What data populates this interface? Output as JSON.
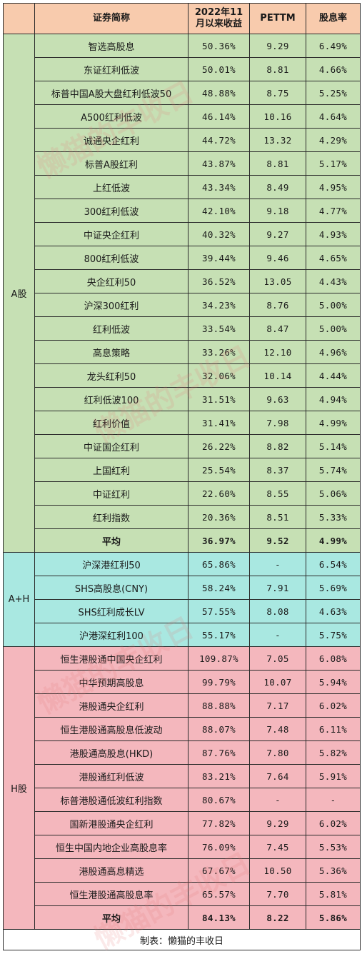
{
  "header": {
    "col_name": "证券简称",
    "col_return": "2022年11月以来收益",
    "col_pe": "PETTM",
    "col_yield": "股息率"
  },
  "groups": {
    "a_share": {
      "label": "A股",
      "rows": [
        {
          "name": "智选高股息",
          "ret": "50.36%",
          "pe": "9.29",
          "yield": "6.49%"
        },
        {
          "name": "东证红利低波",
          "ret": "50.01%",
          "pe": "8.81",
          "yield": "4.66%"
        },
        {
          "name": "标普中国A股大盘红利低波50",
          "ret": "48.88%",
          "pe": "8.75",
          "yield": "5.25%"
        },
        {
          "name": "A500红利低波",
          "ret": "46.14%",
          "pe": "10.16",
          "yield": "4.64%"
        },
        {
          "name": "诚通央企红利",
          "ret": "44.72%",
          "pe": "13.32",
          "yield": "4.29%"
        },
        {
          "name": "标普A股红利",
          "ret": "43.87%",
          "pe": "8.81",
          "yield": "5.17%"
        },
        {
          "name": "上红低波",
          "ret": "43.34%",
          "pe": "8.49",
          "yield": "4.95%"
        },
        {
          "name": "300红利低波",
          "ret": "42.10%",
          "pe": "9.18",
          "yield": "4.77%"
        },
        {
          "name": "中证央企红利",
          "ret": "40.32%",
          "pe": "9.27",
          "yield": "4.93%"
        },
        {
          "name": "800红利低波",
          "ret": "39.44%",
          "pe": "9.46",
          "yield": "4.65%"
        },
        {
          "name": "央企红利50",
          "ret": "36.52%",
          "pe": "13.05",
          "yield": "4.43%"
        },
        {
          "name": "沪深300红利",
          "ret": "34.23%",
          "pe": "8.76",
          "yield": "5.00%"
        },
        {
          "name": "红利低波",
          "ret": "33.54%",
          "pe": "8.47",
          "yield": "5.00%"
        },
        {
          "name": "高息策略",
          "ret": "33.26%",
          "pe": "12.10",
          "yield": "4.96%"
        },
        {
          "name": "龙头红利50",
          "ret": "32.06%",
          "pe": "10.14",
          "yield": "4.44%"
        },
        {
          "name": "红利低波100",
          "ret": "31.51%",
          "pe": "9.63",
          "yield": "4.94%"
        },
        {
          "name": "红利价值",
          "ret": "31.41%",
          "pe": "7.98",
          "yield": "4.99%"
        },
        {
          "name": "中证国企红利",
          "ret": "26.22%",
          "pe": "8.82",
          "yield": "5.14%"
        },
        {
          "name": "上国红利",
          "ret": "25.54%",
          "pe": "8.37",
          "yield": "5.74%"
        },
        {
          "name": "中证红利",
          "ret": "22.60%",
          "pe": "8.55",
          "yield": "5.06%"
        },
        {
          "name": "红利指数",
          "ret": "20.36%",
          "pe": "8.51",
          "yield": "5.33%"
        }
      ],
      "avg": {
        "name": "平均",
        "ret": "36.97%",
        "pe": "9.52",
        "yield": "4.99%"
      }
    },
    "ah_share": {
      "label": "A+H",
      "rows": [
        {
          "name": "沪深港红利50",
          "ret": "65.86%",
          "pe": "-",
          "yield": "6.54%"
        },
        {
          "name": "SHS高股息(CNY)",
          "ret": "58.24%",
          "pe": "7.91",
          "yield": "5.69%"
        },
        {
          "name": "SHS红利成长LV",
          "ret": "57.55%",
          "pe": "8.08",
          "yield": "4.63%"
        },
        {
          "name": "沪港深红利100",
          "ret": "55.17%",
          "pe": "-",
          "yield": "5.75%"
        }
      ]
    },
    "h_share": {
      "label": "H股",
      "rows": [
        {
          "name": "恒生港股通中国央企红利",
          "ret": "109.87%",
          "pe": "7.05",
          "yield": "6.08%"
        },
        {
          "name": "中华预期高股息",
          "ret": "99.79%",
          "pe": "10.07",
          "yield": "5.94%"
        },
        {
          "name": "港股通央企红利",
          "ret": "88.88%",
          "pe": "7.17",
          "yield": "6.02%"
        },
        {
          "name": "恒生港股通高股息低波动",
          "ret": "88.07%",
          "pe": "7.48",
          "yield": "6.11%"
        },
        {
          "name": "港股通高股息(HKD)",
          "ret": "87.76%",
          "pe": "7.80",
          "yield": "5.82%"
        },
        {
          "name": "港股通红利低波",
          "ret": "83.21%",
          "pe": "7.64",
          "yield": "5.91%"
        },
        {
          "name": "标普港股通低波红利指数",
          "ret": "80.67%",
          "pe": "-",
          "yield": "-"
        },
        {
          "name": "国新港股通央企红利",
          "ret": "77.82%",
          "pe": "9.29",
          "yield": "6.02%"
        },
        {
          "name": "恒生中国内地企业高股息率",
          "ret": "76.09%",
          "pe": "7.45",
          "yield": "5.53%"
        },
        {
          "name": "港股通高息精选",
          "ret": "67.67%",
          "pe": "10.50",
          "yield": "5.36%"
        },
        {
          "name": "恒生港股通高股息率",
          "ret": "65.57%",
          "pe": "7.70",
          "yield": "5.81%"
        }
      ],
      "avg": {
        "name": "平均",
        "ret": "84.13%",
        "pe": "8.22",
        "yield": "5.86%"
      }
    }
  },
  "footer": {
    "text": "制表：懒猫的丰收日"
  },
  "watermark": {
    "text": "懒猫的丰收日"
  },
  "colors": {
    "header_bg": "#f8cbad",
    "a_share_bg": "#c6e0b4",
    "ah_share_bg": "#a9e8e1",
    "h_share_bg": "#f4b7bd"
  }
}
